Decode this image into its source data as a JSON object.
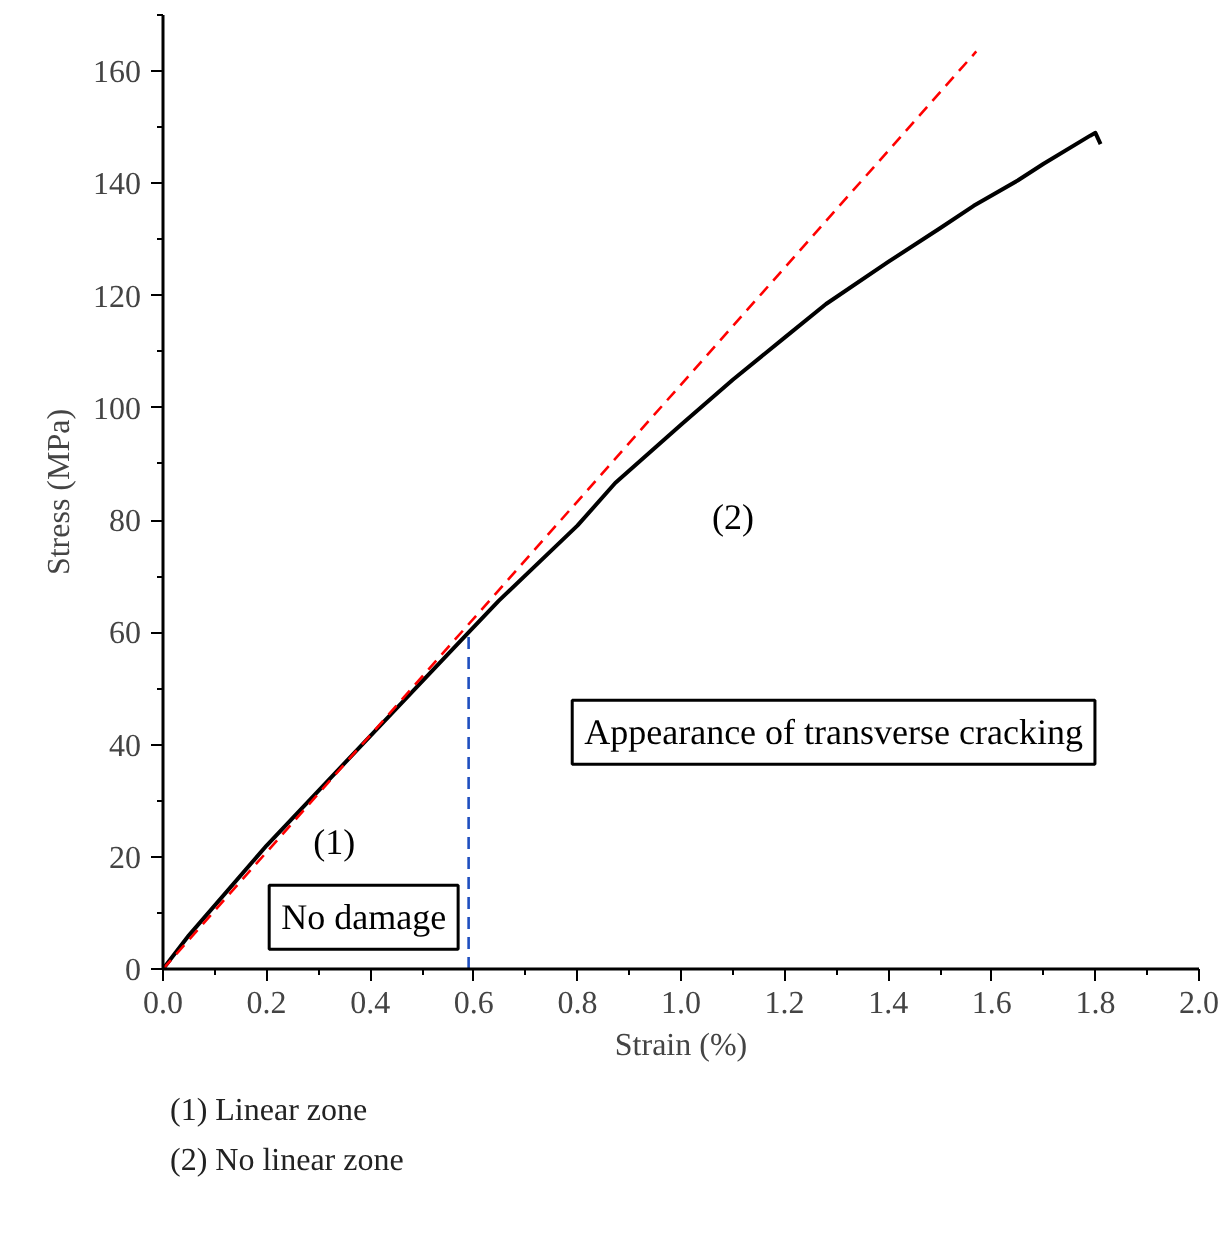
{
  "chart_data": {
    "type": "line",
    "xlabel": "Strain (%)",
    "ylabel": "Stress (MPa)",
    "xlim": [
      0,
      2.0
    ],
    "ylim": [
      0,
      170
    ],
    "xticks": [
      {
        "value": 0,
        "label": "0.0"
      },
      0.2,
      0.4,
      0.6,
      0.8,
      {
        "value": 1,
        "label": "1.0"
      },
      1.2,
      1.4,
      1.6,
      1.8,
      {
        "value": 2,
        "label": "2.0"
      }
    ],
    "yticks": [
      0,
      20,
      40,
      60,
      80,
      100,
      120,
      140,
      160
    ],
    "grid": false,
    "series": [
      {
        "color": "#000000",
        "line_style": "solid",
        "x": [
          0,
          0.05,
          0.2,
          0.4,
          0.59,
          0.648,
          0.8,
          0.873,
          1.0,
          1.1,
          1.2,
          1.28,
          1.4,
          1.5,
          1.565,
          1.65,
          1.7,
          1.79,
          1.8,
          1.81
        ],
        "values": [
          0,
          6,
          22,
          41.5,
          60,
          65.6,
          79,
          86.6,
          97,
          105,
          112.5,
          118.5,
          126,
          132,
          136,
          140.5,
          143.5,
          148.5,
          149,
          147
        ]
      },
      {
        "color": "#ff0000",
        "line_style": "dashed",
        "x": [
          0,
          1.57
        ],
        "values": [
          0,
          163.5
        ]
      },
      {
        "color": "#1f4fbf",
        "line_style": "dashed",
        "x": [
          0.59,
          0.59
        ],
        "values": [
          0,
          60
        ]
      }
    ],
    "annotations": [
      "(1)",
      "(2)",
      "No damage",
      "Appearance of transverse cracking",
      "(1)  Linear zone",
      "(2)  No linear zone"
    ]
  }
}
